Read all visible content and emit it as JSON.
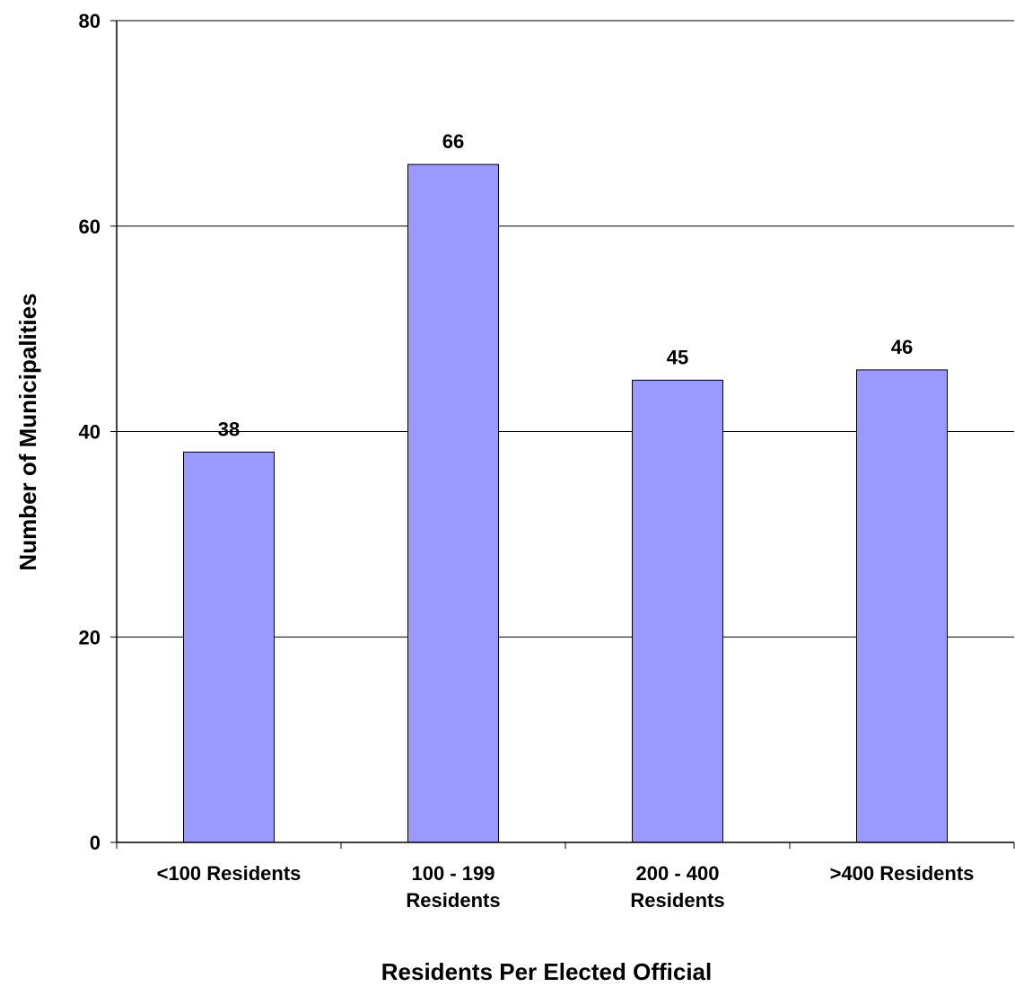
{
  "chart_data": {
    "type": "bar",
    "title": "",
    "xlabel": "Residents Per Elected Official",
    "ylabel": "Number of Municipalities",
    "categories": [
      [
        "<100 Residents"
      ],
      [
        "100 - 199",
        "Residents"
      ],
      [
        "200 - 400",
        "Residents"
      ],
      [
        ">400 Residents"
      ]
    ],
    "values": [
      38,
      66,
      45,
      46
    ],
    "ylim": [
      0,
      80
    ],
    "yticks": [
      0,
      20,
      40,
      60,
      80
    ],
    "grid": true,
    "legend": false,
    "data_labels": true,
    "colors": {
      "bar_fill": "#9999ff",
      "bar_stroke": "#000000",
      "grid": "#000000",
      "axis": "#000000"
    }
  }
}
